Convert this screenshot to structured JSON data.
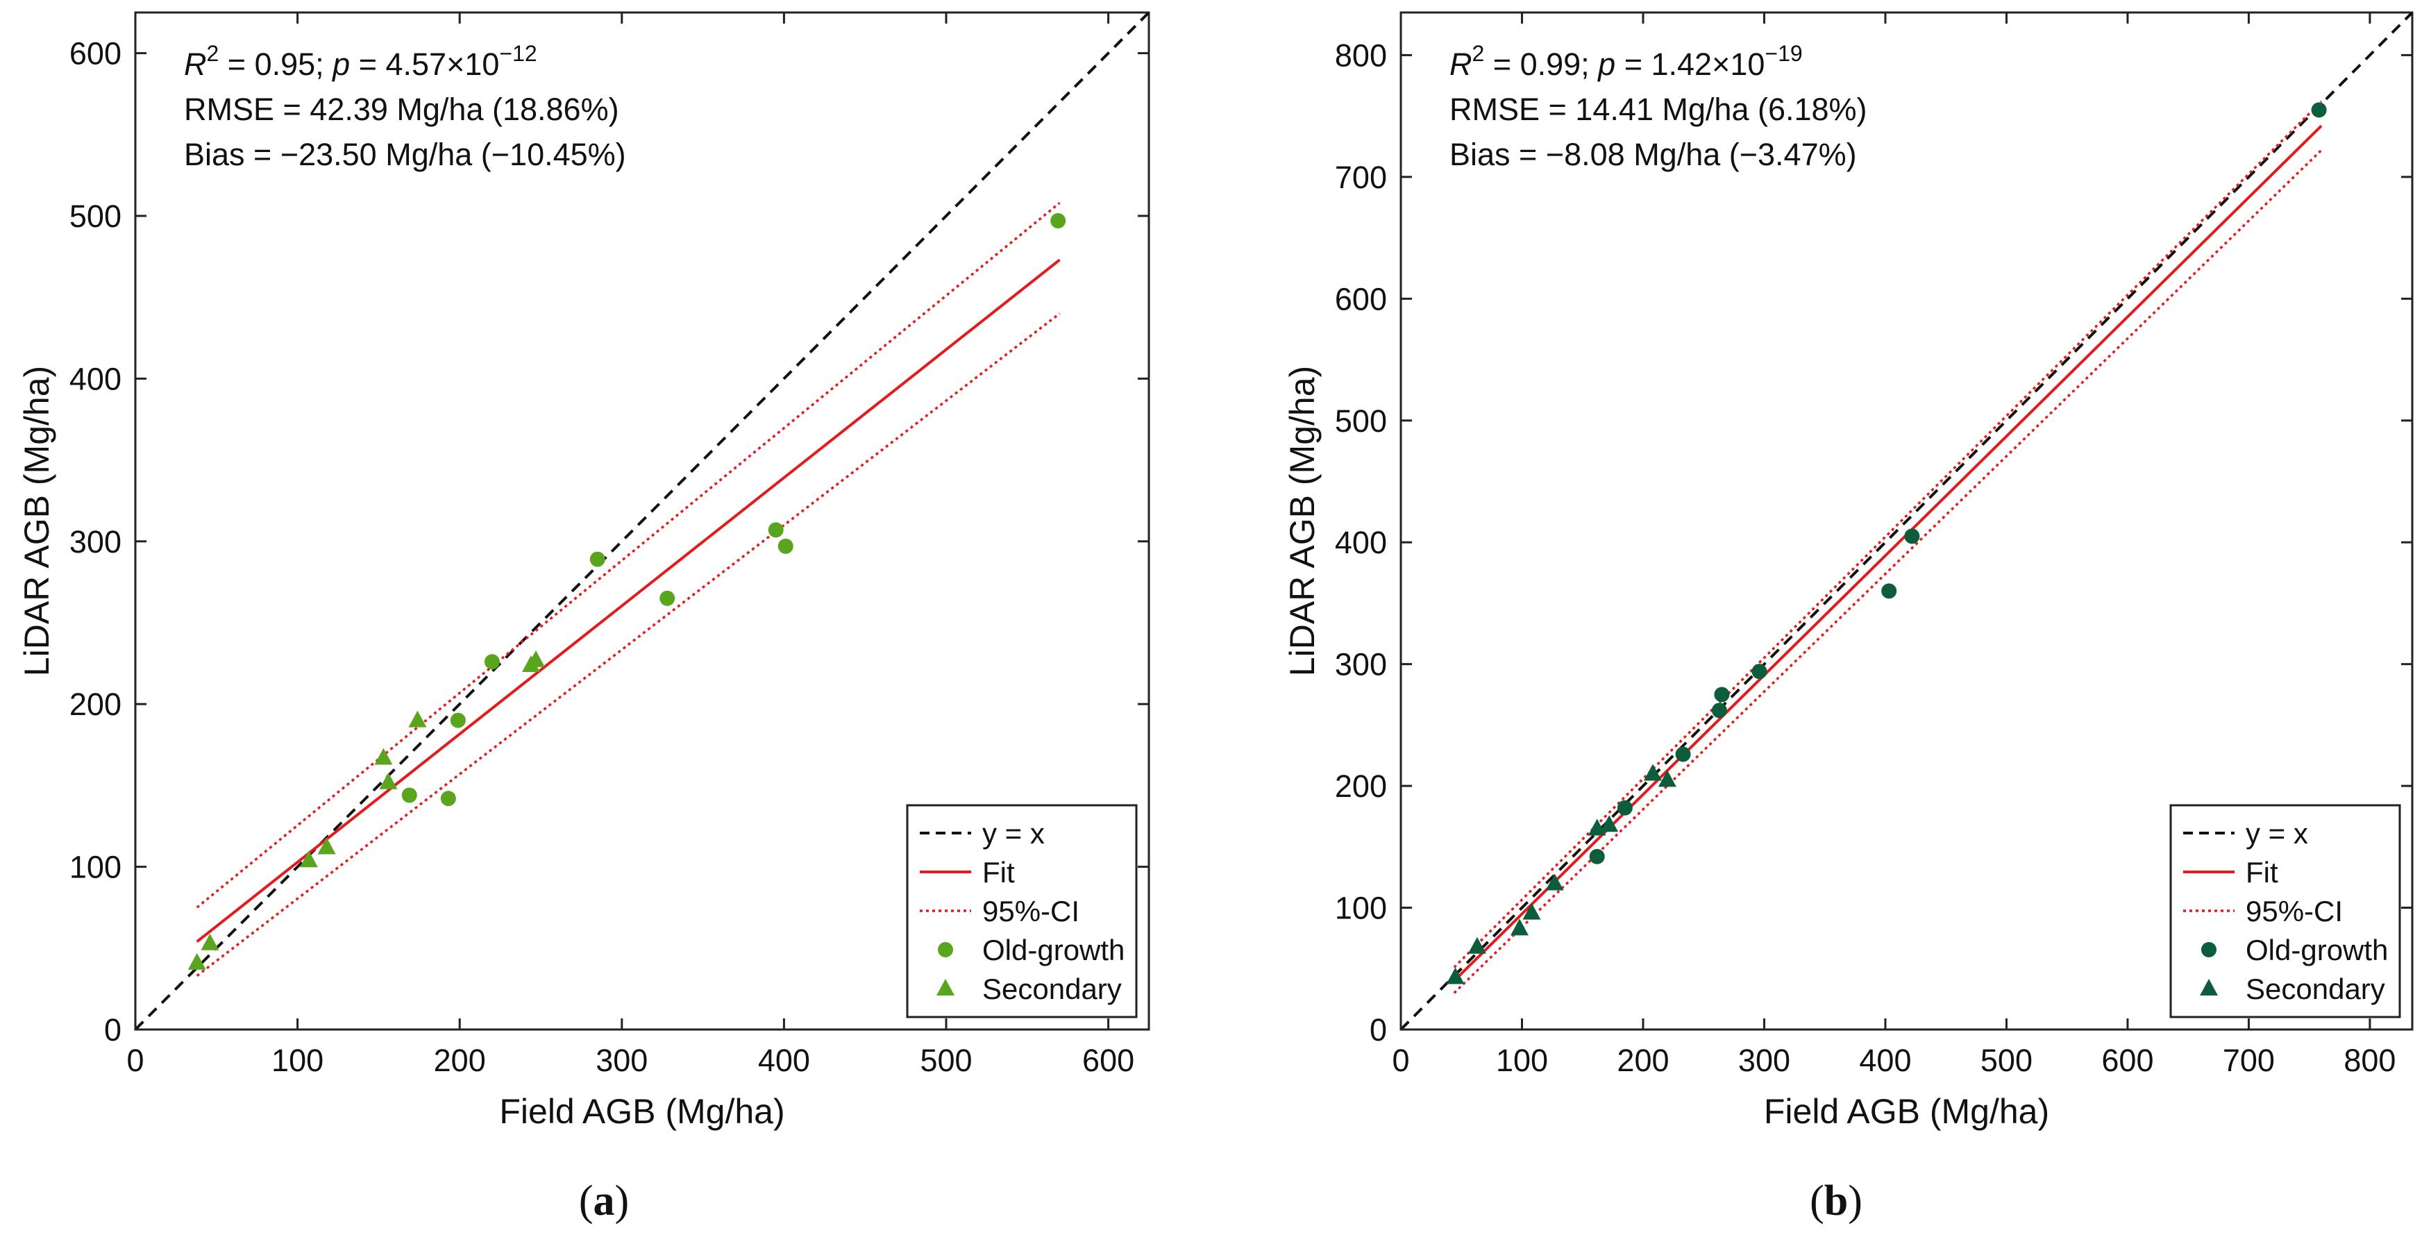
{
  "chart_data": [
    {
      "panel": "(a)",
      "panel_letter": "a",
      "type": "scatter",
      "xlabel": "Field AGB (Mg/ha)",
      "ylabel": "LiDAR AGB (Mg/ha)",
      "xlim": [
        0,
        625
      ],
      "ylim": [
        0,
        625
      ],
      "xticks": [
        0,
        100,
        200,
        300,
        400,
        500,
        600
      ],
      "yticks": [
        0,
        100,
        200,
        300,
        400,
        500,
        600
      ],
      "annotations": {
        "r2_prefix": "R",
        "r2_exp": "2",
        "r2_mid": " = 0.95; ",
        "p_label": "p",
        "p_value": " = 4.57×10",
        "p_exp": "−12",
        "rmse": "RMSE = 42.39 Mg/ha (18.86%)",
        "bias": "Bias = −23.50 Mg/ha (−10.45%)"
      },
      "legend": {
        "position": "bottom-right",
        "entries": [
          "y = x",
          "Fit",
          "95%-CI",
          "Old-growth",
          "Secondary"
        ]
      },
      "colors": {
        "marker": "#5aa51e",
        "fit": "#e41a1c",
        "identity": "#111111"
      },
      "identity_line": [
        [
          0,
          0
        ],
        [
          625,
          625
        ]
      ],
      "fit_line": [
        [
          38,
          54
        ],
        [
          570,
          473
        ]
      ],
      "ci_upper": [
        [
          38,
          75
        ],
        [
          570,
          508
        ]
      ],
      "ci_lower": [
        [
          38,
          33
        ],
        [
          570,
          440
        ]
      ],
      "series": [
        {
          "name": "Old-growth",
          "marker": "circle",
          "points": [
            [
              569,
              497
            ],
            [
              395,
              307
            ],
            [
              401,
              297
            ],
            [
              285,
              289
            ],
            [
              328,
              265
            ],
            [
              220,
              226
            ],
            [
              199,
              190
            ],
            [
              169,
              144
            ],
            [
              193,
              142
            ]
          ]
        },
        {
          "name": "Secondary",
          "marker": "triangle",
          "points": [
            [
              38,
              41
            ],
            [
              46,
              53
            ],
            [
              107,
              104
            ],
            [
              118,
              112
            ],
            [
              156,
              152
            ],
            [
              153,
              167
            ],
            [
              174,
              190
            ],
            [
              244,
              224
            ],
            [
              247,
              227
            ]
          ]
        }
      ]
    },
    {
      "panel": "(b)",
      "panel_letter": "b",
      "type": "scatter",
      "xlabel": "Field AGB (Mg/ha)",
      "ylabel": "LiDAR AGB (Mg/ha)",
      "xlim": [
        0,
        835
      ],
      "ylim": [
        0,
        835
      ],
      "xticks": [
        0,
        100,
        200,
        300,
        400,
        500,
        600,
        700,
        800
      ],
      "yticks": [
        0,
        100,
        200,
        300,
        400,
        500,
        600,
        700,
        800
      ],
      "annotations": {
        "r2_prefix": "R",
        "r2_exp": "2",
        "r2_mid": " = 0.99; ",
        "p_label": "p",
        "p_value": " = 1.42×10",
        "p_exp": "−19",
        "rmse": "RMSE = 14.41 Mg/ha (6.18%)",
        "bias": "Bias = −8.08 Mg/ha (−3.47%)"
      },
      "legend": {
        "position": "bottom-right",
        "entries": [
          "y = x",
          "Fit",
          "95%-CI",
          "Old-growth",
          "Secondary"
        ]
      },
      "colors": {
        "marker": "#0c5d3c",
        "fit": "#e41a1c",
        "identity": "#111111"
      },
      "identity_line": [
        [
          0,
          0
        ],
        [
          835,
          835
        ]
      ],
      "fit_line": [
        [
          44,
          40
        ],
        [
          760,
          742
        ]
      ],
      "ci_upper": [
        [
          44,
          51
        ],
        [
          760,
          762
        ]
      ],
      "ci_lower": [
        [
          44,
          30
        ],
        [
          760,
          722
        ]
      ],
      "series": [
        {
          "name": "Old-growth",
          "marker": "circle",
          "points": [
            [
              758,
              755
            ],
            [
              422,
              405
            ],
            [
              403,
              360
            ],
            [
              296,
              294
            ],
            [
              265,
              275
            ],
            [
              263,
              262
            ],
            [
              233,
              226
            ],
            [
              185,
              182
            ],
            [
              162,
              142
            ]
          ]
        },
        {
          "name": "Secondary",
          "marker": "triangle",
          "points": [
            [
              45,
              43
            ],
            [
              63,
              68
            ],
            [
              98,
              83
            ],
            [
              108,
              96
            ],
            [
              127,
              120
            ],
            [
              162,
              165
            ],
            [
              172,
              168
            ],
            [
              208,
              210
            ],
            [
              220,
              205
            ]
          ]
        }
      ]
    }
  ]
}
